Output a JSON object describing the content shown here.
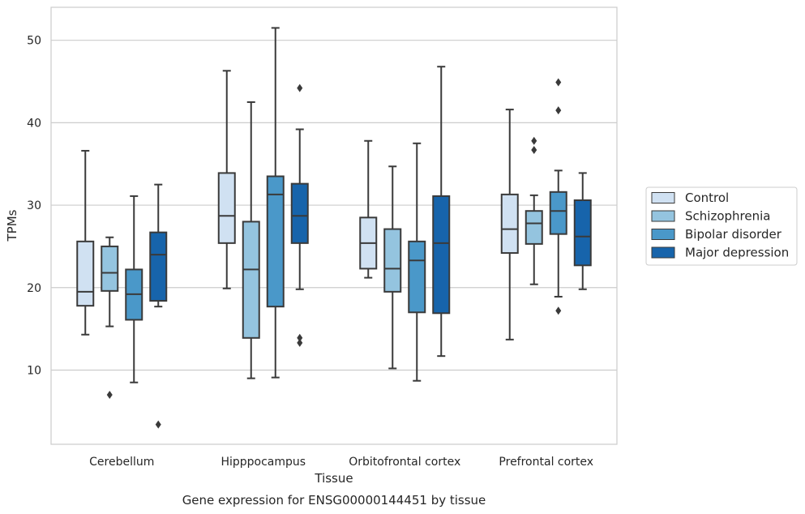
{
  "chart_data": {
    "type": "box",
    "caption": "Gene expression for ENSG00000144451 by tissue",
    "xlabel": "Tissue",
    "ylabel": "TPMs",
    "ylim": [
      1,
      54
    ],
    "yticks": [
      10,
      20,
      30,
      40,
      50
    ],
    "grid": true,
    "legend_position": "right",
    "categories": [
      "Cerebellum",
      "Hipppocampus",
      "Orbitofrontal cortex",
      "Prefrontal cortex"
    ],
    "series": [
      {
        "name": "Control",
        "color": "#d0e1f2",
        "boxes": [
          {
            "whislo": 14.3,
            "q1": 17.8,
            "med": 19.5,
            "q3": 25.6,
            "whishi": 36.6,
            "fliers": []
          },
          {
            "whislo": 19.9,
            "q1": 25.4,
            "med": 28.7,
            "q3": 33.9,
            "whishi": 46.3,
            "fliers": []
          },
          {
            "whislo": 21.2,
            "q1": 22.3,
            "med": 25.4,
            "q3": 28.5,
            "whishi": 37.8,
            "fliers": []
          },
          {
            "whislo": 13.7,
            "q1": 24.2,
            "med": 27.1,
            "q3": 31.3,
            "whishi": 41.6,
            "fliers": []
          }
        ]
      },
      {
        "name": "Schizophrenia",
        "color": "#94c4df",
        "boxes": [
          {
            "whislo": 15.3,
            "q1": 19.6,
            "med": 21.8,
            "q3": 25.0,
            "whishi": 26.1,
            "fliers": [
              7.0
            ]
          },
          {
            "whislo": 9.0,
            "q1": 13.9,
            "med": 22.2,
            "q3": 28.0,
            "whishi": 42.5,
            "fliers": []
          },
          {
            "whislo": 10.2,
            "q1": 19.5,
            "med": 22.3,
            "q3": 27.1,
            "whishi": 34.7,
            "fliers": []
          },
          {
            "whislo": 20.4,
            "q1": 25.3,
            "med": 27.8,
            "q3": 29.3,
            "whishi": 31.2,
            "fliers": [
              36.7,
              37.8
            ]
          }
        ]
      },
      {
        "name": "Bipolar disorder",
        "color": "#4a98c9",
        "boxes": [
          {
            "whislo": 8.5,
            "q1": 16.1,
            "med": 19.2,
            "q3": 22.2,
            "whishi": 31.1,
            "fliers": []
          },
          {
            "whislo": 9.1,
            "q1": 17.7,
            "med": 31.3,
            "q3": 33.5,
            "whishi": 51.5,
            "fliers": []
          },
          {
            "whislo": 8.7,
            "q1": 17.0,
            "med": 23.3,
            "q3": 25.6,
            "whishi": 37.5,
            "fliers": []
          },
          {
            "whislo": 18.9,
            "q1": 26.5,
            "med": 29.3,
            "q3": 31.6,
            "whishi": 34.2,
            "fliers": [
              17.2,
              41.5,
              44.9
            ]
          }
        ]
      },
      {
        "name": "Major depression",
        "color": "#1764ab",
        "boxes": [
          {
            "whislo": 17.7,
            "q1": 18.4,
            "med": 24.0,
            "q3": 26.7,
            "whishi": 32.5,
            "fliers": [
              3.4
            ]
          },
          {
            "whislo": 19.8,
            "q1": 25.4,
            "med": 28.7,
            "q3": 32.6,
            "whishi": 39.2,
            "fliers": [
              13.3,
              13.9,
              44.2
            ]
          },
          {
            "whislo": 11.7,
            "q1": 16.9,
            "med": 25.4,
            "q3": 31.1,
            "whishi": 46.8,
            "fliers": []
          },
          {
            "whislo": 19.8,
            "q1": 22.7,
            "med": 26.2,
            "q3": 30.6,
            "whishi": 33.9,
            "fliers": []
          }
        ]
      }
    ]
  }
}
